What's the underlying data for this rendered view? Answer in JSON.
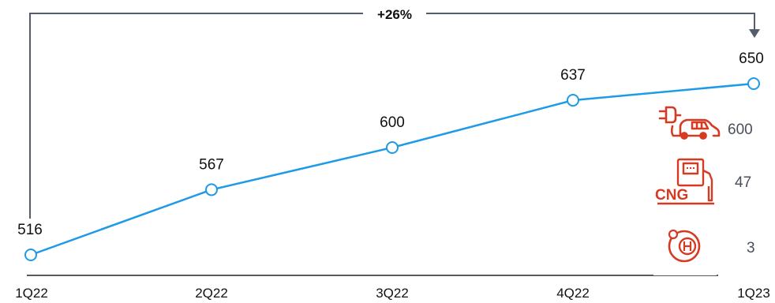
{
  "chart_data": {
    "type": "line",
    "categories": [
      "1Q22",
      "2Q22",
      "3Q22",
      "4Q22",
      "1Q23"
    ],
    "series": [
      {
        "values": [
          516,
          567,
          600,
          637,
          650
        ],
        "color": "#1e9ae6"
      }
    ],
    "data_labels": [
      "516",
      "567",
      "600",
      "637",
      "650"
    ],
    "ylim": [
      490,
      670
    ],
    "grid": false,
    "legend": "none",
    "growth_annotation": {
      "text": "+26%",
      "from": "1Q22",
      "to": "1Q23"
    },
    "breakdown": [
      {
        "icon": "ev-charging-car-icon",
        "value": "600"
      },
      {
        "icon": "cng-pump-icon",
        "value": "47"
      },
      {
        "icon": "hydrogen-icon",
        "value": "3"
      }
    ],
    "colors": {
      "line": "#1e9ae6",
      "icon": "#d63a22",
      "bracket": "#555d6b",
      "value_text": "#4a4f5a"
    }
  }
}
